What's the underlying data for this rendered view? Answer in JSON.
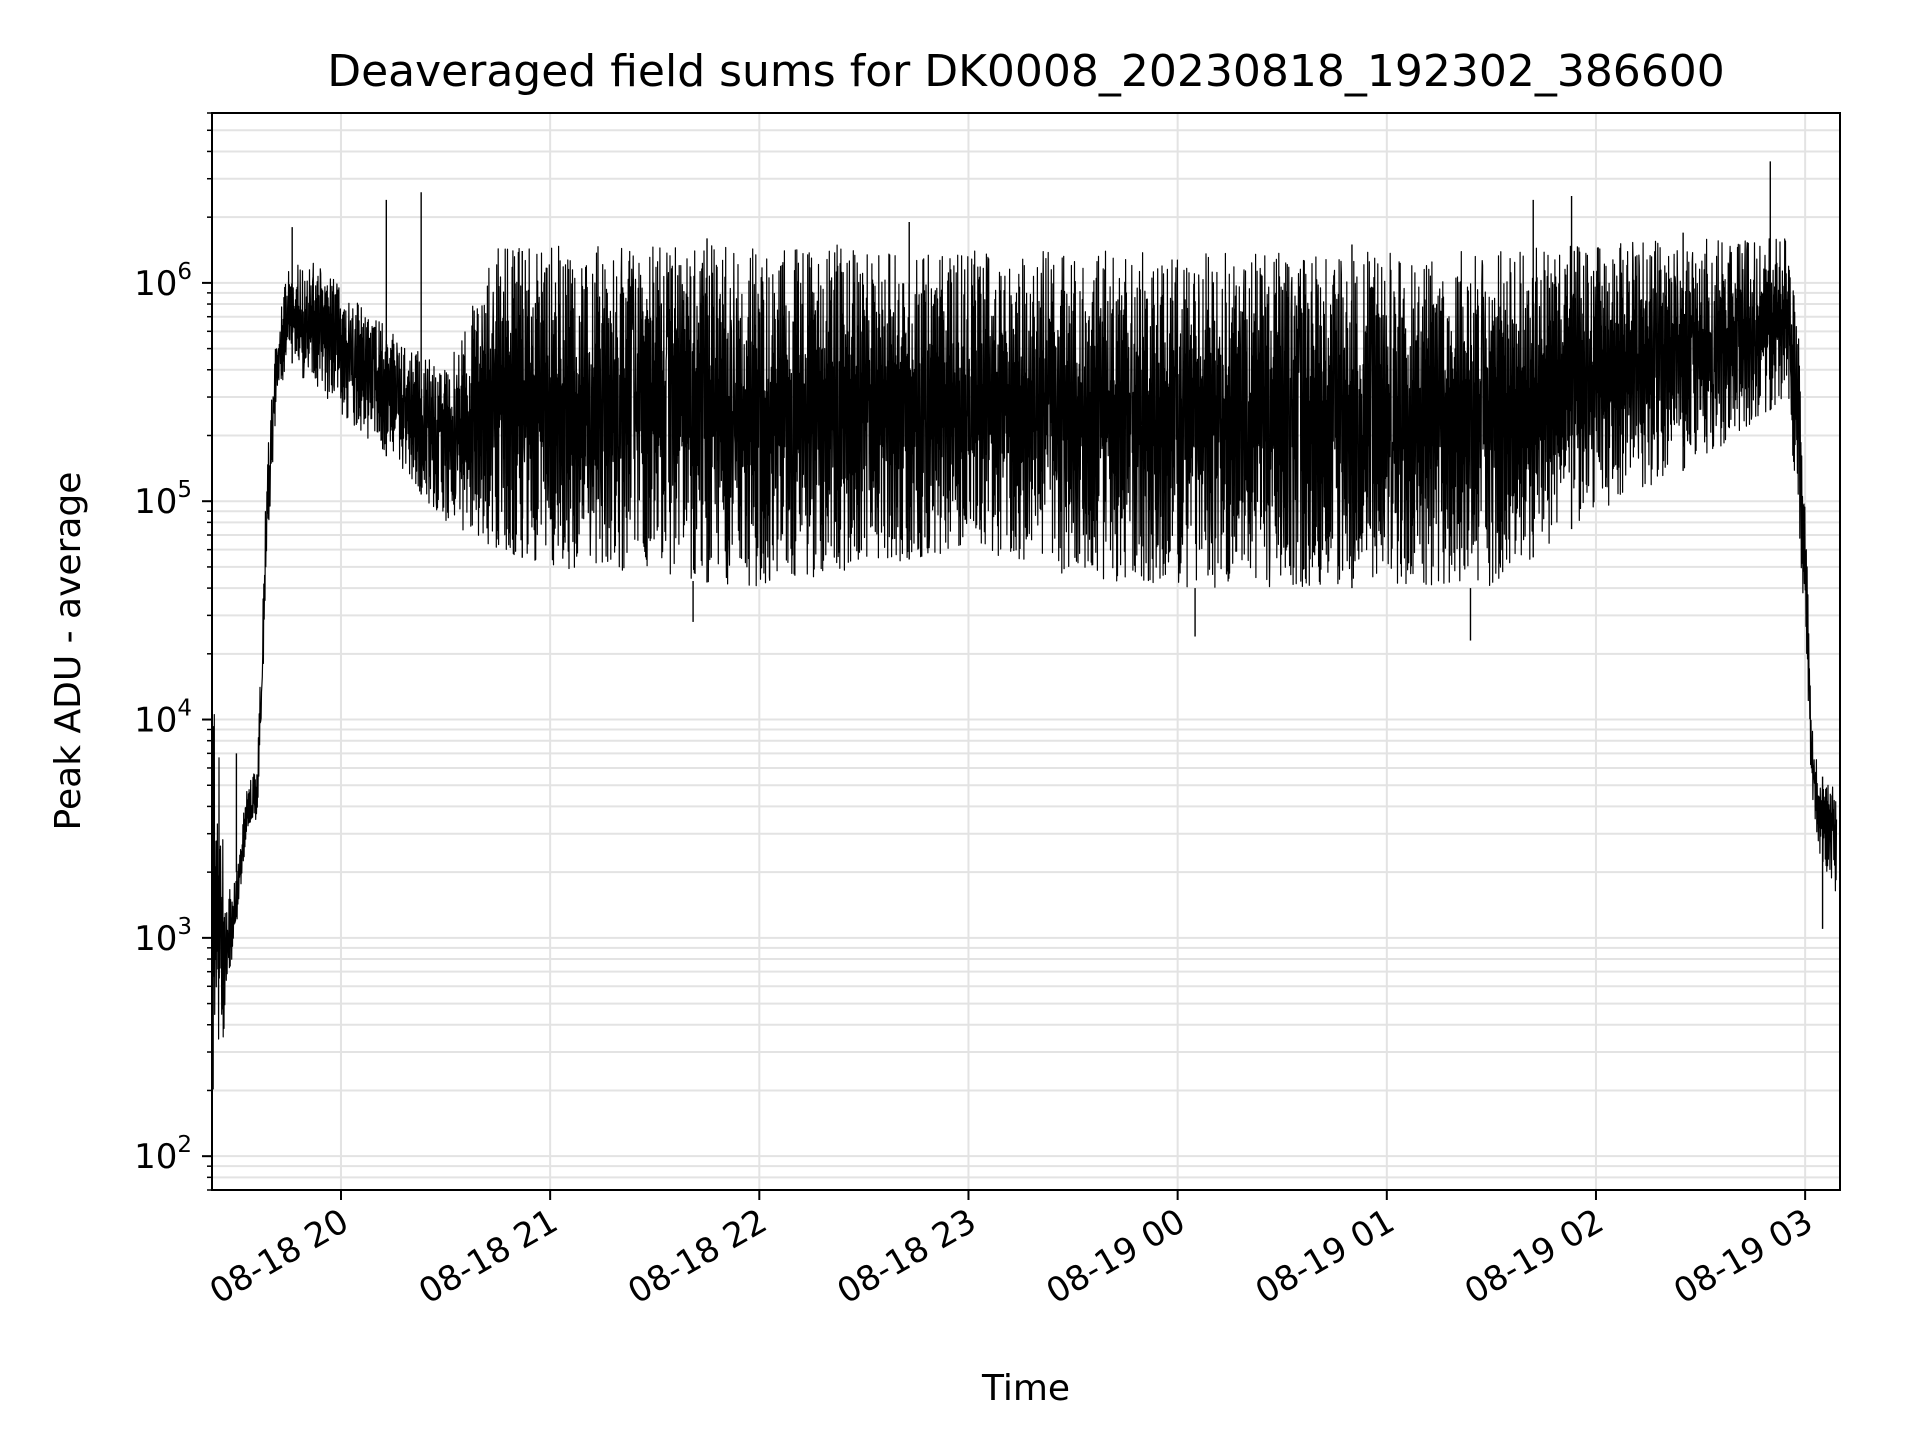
{
  "chart_data": {
    "type": "line",
    "title": "Deaveraged field sums for DK0008_20230818_192302_386600",
    "xlabel": "Time",
    "ylabel": "Peak ADU - average",
    "yscale": "log",
    "ylim": [
      70,
      6000000
    ],
    "xlim": [
      "2023-08-18 19:23",
      "2023-08-19 03:10"
    ],
    "grid": true,
    "legend": "none",
    "line_color": "#000000",
    "x_ticks": [
      {
        "t": "2023-08-18 20:00",
        "label": "08-18 20"
      },
      {
        "t": "2023-08-18 21:00",
        "label": "08-18 21"
      },
      {
        "t": "2023-08-18 22:00",
        "label": "08-18 22"
      },
      {
        "t": "2023-08-18 23:00",
        "label": "08-18 23"
      },
      {
        "t": "2023-08-19 00:00",
        "label": "08-19 00"
      },
      {
        "t": "2023-08-19 01:00",
        "label": "08-19 01"
      },
      {
        "t": "2023-08-19 02:00",
        "label": "08-19 02"
      },
      {
        "t": "2023-08-19 03:00",
        "label": "08-19 03"
      }
    ],
    "y_ticks": [
      {
        "value": 100,
        "base": "10",
        "exp": "2"
      },
      {
        "value": 1000,
        "base": "10",
        "exp": "3"
      },
      {
        "value": 10000,
        "base": "10",
        "exp": "4"
      },
      {
        "value": 100000,
        "base": "10",
        "exp": "5"
      },
      {
        "value": 1000000,
        "base": "10",
        "exp": "6"
      }
    ],
    "envelope": {
      "t": [
        "2023-08-18 19:23",
        "2023-08-18 19:24",
        "2023-08-18 19:27",
        "2023-08-18 19:30",
        "2023-08-18 19:33",
        "2023-08-18 19:36",
        "2023-08-18 19:37",
        "2023-08-18 19:39",
        "2023-08-18 19:42",
        "2023-08-18 19:45",
        "2023-08-18 19:50",
        "2023-08-18 20:00",
        "2023-08-18 20:15",
        "2023-08-18 20:30",
        "2023-08-18 20:45",
        "2023-08-18 21:00",
        "2023-08-18 21:30",
        "2023-08-18 22:00",
        "2023-08-18 22:30",
        "2023-08-18 23:00",
        "2023-08-18 23:30",
        "2023-08-19 00:00",
        "2023-08-19 00:30",
        "2023-08-19 01:00",
        "2023-08-19 01:30",
        "2023-08-19 02:00",
        "2023-08-19 02:30",
        "2023-08-19 02:55",
        "2023-08-19 02:58",
        "2023-08-19 03:00",
        "2023-08-19 03:02",
        "2023-08-19 03:04",
        "2023-08-19 03:06",
        "2023-08-19 03:09"
      ],
      "low": [
        150,
        120,
        500,
        1100,
        3000,
        3500,
        8000,
        60000,
        300000,
        450000,
        350000,
        250000,
        150000,
        80000,
        60000,
        50000,
        45000,
        40000,
        50000,
        60000,
        45000,
        40000,
        40000,
        40000,
        40000,
        90000,
        150000,
        300000,
        60000,
        30000,
        4000,
        2500,
        2000,
        1500
      ],
      "high": [
        20000,
        15000,
        1500,
        2000,
        5000,
        6000,
        20000,
        200000,
        700000,
        1200000,
        1300000,
        1000000,
        600000,
        400000,
        1500000,
        1500000,
        1500000,
        1500000,
        1500000,
        1400000,
        1400000,
        1400000,
        1400000,
        1400000,
        1400000,
        1500000,
        1600000,
        1600000,
        700000,
        100000,
        10000,
        6000,
        5000,
        5000
      ]
    },
    "spikes": [
      {
        "t": "2023-08-18 20:13",
        "value": 2400000
      },
      {
        "t": "2023-08-18 20:23",
        "value": 2600000
      },
      {
        "t": "2023-08-18 19:46",
        "value": 1800000
      },
      {
        "t": "2023-08-18 20:52",
        "value": 1400000
      },
      {
        "t": "2023-08-18 21:45",
        "value": 1600000
      },
      {
        "t": "2023-08-18 22:43",
        "value": 1900000
      },
      {
        "t": "2023-08-19 00:50",
        "value": 1500000
      },
      {
        "t": "2023-08-19 01:42",
        "value": 2400000
      },
      {
        "t": "2023-08-19 01:53",
        "value": 2500000
      },
      {
        "t": "2023-08-19 02:25",
        "value": 1700000
      },
      {
        "t": "2023-08-19 02:50",
        "value": 3600000
      },
      {
        "t": "2023-08-18 19:30",
        "value": 7000
      },
      {
        "t": "2023-08-19 01:24",
        "value": 23000
      },
      {
        "t": "2023-08-18 21:41",
        "value": 28000
      },
      {
        "t": "2023-08-19 00:05",
        "value": 24000
      },
      {
        "t": "2023-08-19 03:05",
        "value": 1100
      }
    ]
  }
}
